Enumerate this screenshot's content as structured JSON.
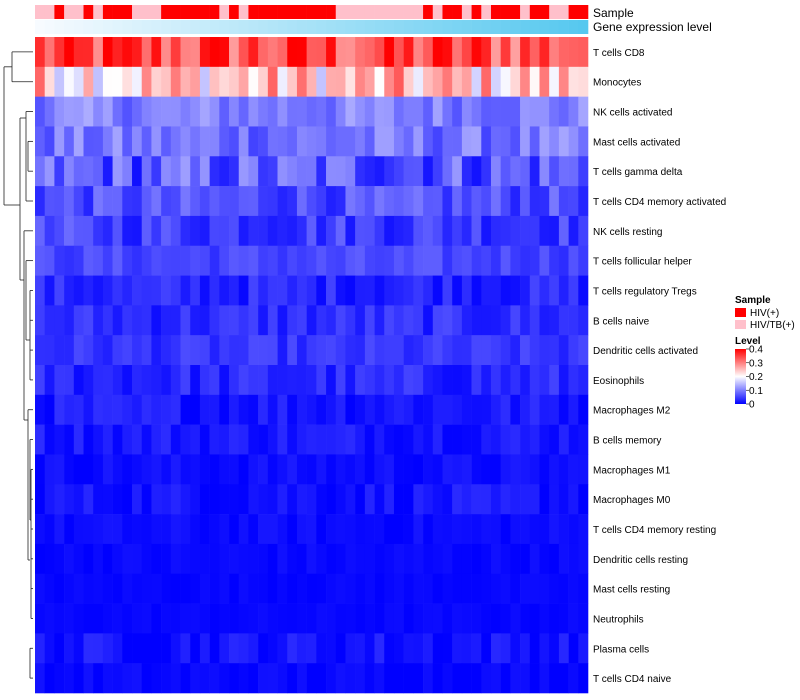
{
  "chart_data": {
    "type": "heatmap",
    "title": "",
    "annotation_tracks": [
      {
        "label": "Sample",
        "kind": "categorical"
      },
      {
        "label": "Gene expression level",
        "kind": "continuous",
        "low_color": "#f7fbff",
        "high_color": "#56c8ef"
      }
    ],
    "sample_groups": [
      "HIV(+)",
      "HIV/TB(+)"
    ],
    "sample_group_colors": {
      "HIV(+)": "#ff0000",
      "HIV/TB(+)": "#ffc0cb"
    },
    "sample_annotation": [
      "HIV/TB(+)",
      "HIV/TB(+)",
      "HIV(+)",
      "HIV/TB(+)",
      "HIV/TB(+)",
      "HIV(+)",
      "HIV/TB(+)",
      "HIV(+)",
      "HIV(+)",
      "HIV(+)",
      "HIV/TB(+)",
      "HIV/TB(+)",
      "HIV/TB(+)",
      "HIV(+)",
      "HIV(+)",
      "HIV(+)",
      "HIV(+)",
      "HIV(+)",
      "HIV(+)",
      "HIV/TB(+)",
      "HIV(+)",
      "HIV/TB(+)",
      "HIV(+)",
      "HIV(+)",
      "HIV(+)",
      "HIV(+)",
      "HIV(+)",
      "HIV(+)",
      "HIV(+)",
      "HIV(+)",
      "HIV(+)",
      "HIV/TB(+)",
      "HIV/TB(+)",
      "HIV/TB(+)",
      "HIV/TB(+)",
      "HIV/TB(+)",
      "HIV/TB(+)",
      "HIV/TB(+)",
      "HIV/TB(+)",
      "HIV/TB(+)",
      "HIV(+)",
      "HIV/TB(+)",
      "HIV(+)",
      "HIV(+)",
      "HIV/TB(+)",
      "HIV(+)",
      "HIV/TB(+)",
      "HIV(+)",
      "HIV(+)",
      "HIV(+)",
      "HIV/TB(+)",
      "HIV(+)",
      "HIV(+)",
      "HIV/TB(+)",
      "HIV/TB(+)",
      "HIV(+)",
      "HIV(+)"
    ],
    "rows": [
      "T cells CD8",
      "Monocytes",
      "NK cells activated",
      "Mast cells activated",
      "T cells gamma delta",
      "T cells CD4 memory activated",
      "NK cells resting",
      "T cells follicular helper",
      "T cells regulatory  Tregs",
      "B cells naive",
      "Dendritic cells activated",
      "Eosinophils",
      "Macrophages M2",
      "B cells memory",
      "Macrophages M1",
      "Macrophages M0",
      "T cells CD4 memory resting",
      "Dendritic cells resting",
      "Mast cells resting",
      "Neutrophils",
      "Plasma cells",
      "T cells CD4 naive"
    ],
    "row_profiles": [
      {
        "base": 0.34,
        "spread": 0.08
      },
      {
        "base": 0.24,
        "spread": 0.09
      },
      {
        "base": 0.1,
        "spread": 0.035
      },
      {
        "base": 0.09,
        "spread": 0.04
      },
      {
        "base": 0.07,
        "spread": 0.06
      },
      {
        "base": 0.06,
        "spread": 0.035
      },
      {
        "base": 0.05,
        "spread": 0.035
      },
      {
        "base": 0.055,
        "spread": 0.02
      },
      {
        "base": 0.03,
        "spread": 0.025
      },
      {
        "base": 0.035,
        "spread": 0.025
      },
      {
        "base": 0.04,
        "spread": 0.02
      },
      {
        "base": 0.03,
        "spread": 0.025
      },
      {
        "base": 0.02,
        "spread": 0.02
      },
      {
        "base": 0.02,
        "spread": 0.018
      },
      {
        "base": 0.01,
        "spread": 0.012
      },
      {
        "base": 0.015,
        "spread": 0.018
      },
      {
        "base": 0.008,
        "spread": 0.01
      },
      {
        "base": 0.006,
        "spread": 0.008
      },
      {
        "base": 0.005,
        "spread": 0.005
      },
      {
        "base": 0.005,
        "spread": 0.005
      },
      {
        "base": 0.015,
        "spread": 0.02
      },
      {
        "base": 0.005,
        "spread": 0.01
      }
    ],
    "color_scale": {
      "min": 0,
      "max": 0.4,
      "colors": [
        "#0000ff",
        "#ffffff",
        "#ff0000"
      ],
      "mid": 0.2
    },
    "legend_sample": {
      "title": "Sample",
      "entries": [
        "HIV(+)",
        "HIV/TB(+)"
      ]
    },
    "legend_level": {
      "title": "Level",
      "ticks": [
        "0.4",
        "0.3",
        "0.2",
        "0.1",
        "0"
      ],
      "tick_values": [
        0.4,
        0.3,
        0.2,
        0.1,
        0
      ]
    },
    "dendrogram": "rows",
    "legend_position": "right"
  }
}
